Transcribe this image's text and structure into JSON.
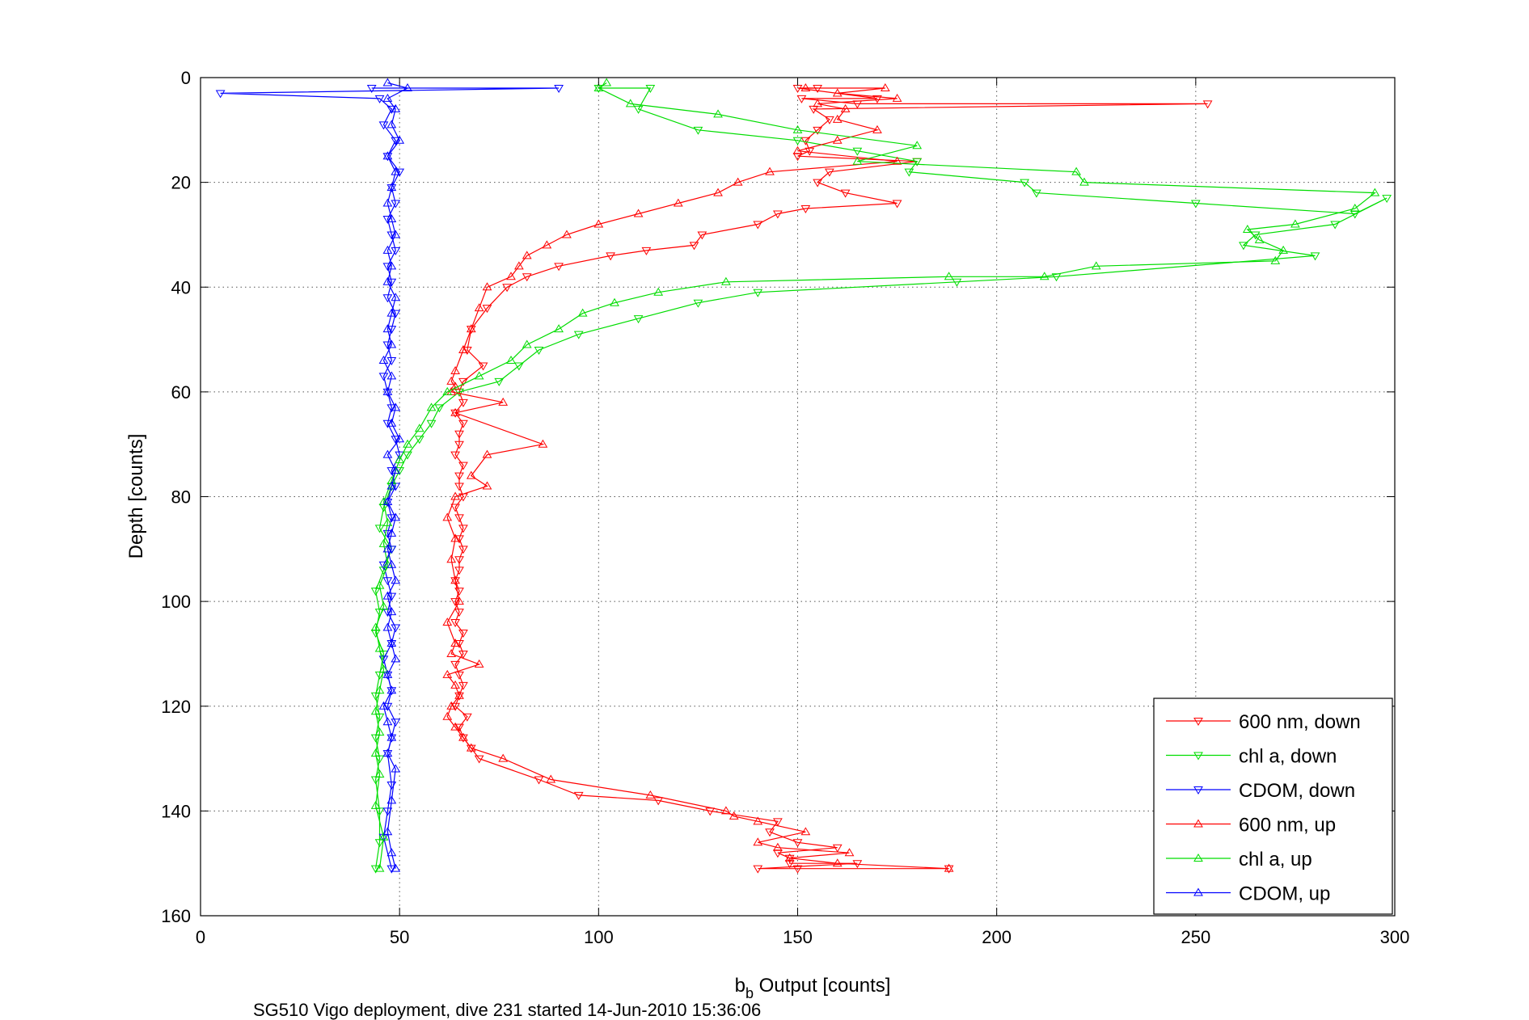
{
  "chart_data": {
    "type": "line",
    "xlabel_main": "b",
    "xlabel_sub": "b",
    "xlabel_rest": " Output [counts]",
    "ylabel": "Depth [counts]",
    "caption": "SG510 Vigo deployment, dive 231 started 14-Jun-2010 15:36:06",
    "xlim": [
      0,
      300
    ],
    "ylim": [
      0,
      160
    ],
    "y_reversed": true,
    "grid": true,
    "legend_position": "bottom-right",
    "x_ticks": [
      "0",
      "50",
      "100",
      "150",
      "200",
      "250",
      "300"
    ],
    "y_ticks": [
      "0",
      "20",
      "40",
      "60",
      "80",
      "100",
      "120",
      "140",
      "160"
    ],
    "series": [
      {
        "name": "600 nm, down",
        "color": "#ff0000",
        "marker": "down",
        "x": [
          155,
          150,
          170,
          151,
          165,
          253,
          154,
          158,
          155,
          152,
          153,
          150,
          180,
          158,
          155,
          162,
          175,
          152,
          145,
          140,
          126,
          124,
          112,
          103,
          90,
          82,
          77,
          72,
          68,
          67,
          71,
          66,
          65,
          66,
          64,
          66,
          65,
          65,
          64,
          66,
          65,
          65,
          66,
          64,
          65,
          66,
          65,
          66,
          65,
          65,
          64,
          65,
          64,
          65,
          64,
          66,
          65,
          66,
          64,
          65,
          66,
          65,
          64,
          67,
          65,
          66,
          68,
          70,
          85,
          95,
          115,
          128,
          145,
          143,
          150,
          160,
          145,
          148,
          148,
          165,
          140,
          150,
          188
        ],
        "y": [
          2,
          2,
          4,
          4,
          5,
          5,
          6,
          8,
          10,
          12,
          14,
          15,
          16,
          18,
          20,
          22,
          24,
          25,
          26,
          28,
          30,
          32,
          33,
          34,
          36,
          38,
          40,
          44,
          48,
          52,
          55,
          58,
          60,
          62,
          64,
          66,
          68,
          70,
          72,
          74,
          76,
          78,
          80,
          82,
          84,
          86,
          88,
          90,
          92,
          94,
          96,
          98,
          100,
          102,
          104,
          106,
          108,
          110,
          112,
          114,
          116,
          118,
          120,
          122,
          124,
          126,
          128,
          130,
          134,
          137,
          138,
          140,
          142,
          144,
          146,
          147,
          148,
          149,
          150,
          150,
          151,
          151,
          151
        ]
      },
      {
        "name": "chl a, down",
        "color": "#00dd00",
        "marker": "down",
        "x": [
          100,
          113,
          110,
          125,
          150,
          165,
          180,
          178,
          207,
          210,
          250,
          290,
          298,
          285,
          265,
          262,
          280,
          215,
          190,
          140,
          125,
          110,
          95,
          85,
          80,
          75,
          65,
          60,
          58,
          55,
          52,
          50,
          48,
          46,
          45,
          48,
          46,
          44,
          45,
          44,
          46,
          45,
          44,
          45,
          44,
          45,
          44,
          45,
          45,
          44
        ],
        "y": [
          2,
          2,
          6,
          10,
          12,
          14,
          16,
          18,
          20,
          22,
          24,
          26,
          23,
          28,
          30,
          32,
          34,
          38,
          39,
          41,
          43,
          46,
          49,
          52,
          55,
          58,
          60,
          63,
          66,
          69,
          72,
          75,
          78,
          82,
          86,
          90,
          94,
          98,
          102,
          106,
          110,
          114,
          118,
          122,
          126,
          130,
          134,
          140,
          146,
          151
        ]
      },
      {
        "name": "CDOM, down",
        "color": "#0000ff",
        "marker": "down",
        "x": [
          43,
          90,
          5,
          45,
          48,
          46,
          49,
          47,
          50,
          48,
          49,
          47,
          48,
          49,
          47,
          48,
          47,
          49,
          48,
          47,
          48,
          46,
          47,
          48,
          47,
          49,
          50,
          48,
          49,
          47,
          48,
          47,
          48,
          46,
          47,
          48,
          47,
          49,
          48,
          46,
          47,
          48,
          47,
          49,
          48,
          47,
          48,
          47,
          46,
          48
        ],
        "y": [
          2,
          2,
          3,
          4,
          6,
          9,
          12,
          15,
          18,
          21,
          24,
          27,
          30,
          33,
          36,
          39,
          42,
          45,
          48,
          51,
          54,
          57,
          60,
          63,
          66,
          69,
          72,
          75,
          78,
          81,
          84,
          87,
          90,
          93,
          96,
          99,
          102,
          105,
          108,
          111,
          114,
          117,
          120,
          123,
          126,
          129,
          135,
          140,
          145,
          151
        ]
      },
      {
        "name": "600 nm, up",
        "color": "#ff0000",
        "marker": "up",
        "x": [
          152,
          172,
          160,
          175,
          155,
          162,
          160,
          170,
          160,
          150,
          175,
          143,
          135,
          130,
          120,
          110,
          100,
          92,
          87,
          82,
          80,
          78,
          72,
          70,
          68,
          66,
          64,
          63,
          64,
          63,
          76,
          64,
          86,
          72,
          68,
          72,
          64,
          62,
          64,
          63,
          64,
          65,
          62,
          64,
          63,
          70,
          62,
          64,
          65,
          63,
          62,
          64,
          66,
          68,
          76,
          88,
          113,
          132,
          134,
          140,
          152,
          140,
          145,
          163,
          148,
          160,
          188
        ],
        "y": [
          2,
          2,
          3,
          4,
          5,
          6,
          8,
          10,
          12,
          14,
          16,
          18,
          20,
          22,
          24,
          26,
          28,
          30,
          32,
          34,
          36,
          38,
          40,
          44,
          48,
          52,
          56,
          58,
          59,
          60,
          62,
          64,
          70,
          72,
          76,
          78,
          80,
          84,
          88,
          92,
          96,
          100,
          104,
          108,
          110,
          112,
          114,
          116,
          118,
          120,
          122,
          124,
          126,
          128,
          130,
          134,
          137,
          140,
          141,
          142,
          144,
          146,
          147,
          148,
          149,
          150,
          151
        ]
      },
      {
        "name": "chl a, up",
        "color": "#00dd00",
        "marker": "up",
        "x": [
          102,
          100,
          108,
          130,
          150,
          180,
          165,
          220,
          222,
          295,
          290,
          275,
          263,
          266,
          272,
          270,
          225,
          212,
          188,
          132,
          115,
          104,
          96,
          90,
          82,
          78,
          70,
          62,
          58,
          55,
          52,
          50,
          48,
          46,
          47,
          46,
          47,
          45,
          46,
          44,
          45,
          46,
          45,
          44,
          45,
          44,
          45,
          44,
          46,
          45
        ],
        "y": [
          1,
          2,
          5,
          7,
          10,
          13,
          16,
          18,
          20,
          22,
          25,
          28,
          29,
          31,
          33,
          35,
          36,
          38,
          38,
          39,
          41,
          43,
          45,
          48,
          51,
          54,
          57,
          60,
          63,
          67,
          70,
          73,
          77,
          81,
          85,
          89,
          93,
          97,
          101,
          105,
          109,
          113,
          117,
          121,
          125,
          129,
          133,
          139,
          145,
          151
        ]
      },
      {
        "name": "CDOM, up",
        "color": "#0000ff",
        "marker": "up",
        "x": [
          47,
          52,
          47,
          49,
          48,
          50,
          47,
          49,
          48,
          47,
          48,
          49,
          47,
          48,
          47,
          49,
          48,
          47,
          48,
          46,
          48,
          47,
          49,
          48,
          50,
          47,
          49,
          48,
          47,
          49,
          48,
          47,
          48,
          49,
          47,
          48,
          47,
          48,
          49,
          47,
          48,
          46,
          47,
          48,
          47,
          49,
          48,
          47,
          48,
          49
        ],
        "y": [
          1,
          2,
          4,
          6,
          9,
          12,
          15,
          18,
          21,
          24,
          27,
          30,
          33,
          36,
          39,
          42,
          45,
          48,
          51,
          54,
          57,
          60,
          63,
          66,
          69,
          72,
          75,
          78,
          81,
          84,
          87,
          90,
          93,
          96,
          99,
          102,
          105,
          108,
          111,
          114,
          117,
          120,
          123,
          126,
          129,
          132,
          138,
          144,
          148,
          151
        ]
      }
    ]
  }
}
